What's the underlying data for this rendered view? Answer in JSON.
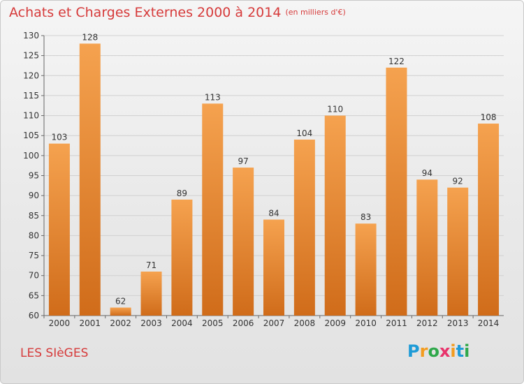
{
  "title": "Achats et Charges Externes 2000 à 2014",
  "unit_label": "(en milliers d'€)",
  "commune": "LES SIèGES",
  "logo": {
    "text": "Proxiti",
    "letters": [
      {
        "ch": "P",
        "color": "#1e9bd7"
      },
      {
        "ch": "r",
        "color": "#f39c1f"
      },
      {
        "ch": "o",
        "color": "#2ea84a"
      },
      {
        "ch": "x",
        "color": "#e8336b"
      },
      {
        "ch": "i",
        "color": "#f39c1f"
      },
      {
        "ch": "t",
        "color": "#1e9bd7"
      },
      {
        "ch": "i",
        "color": "#2ea84a"
      }
    ]
  },
  "colors": {
    "title": "#d63a3a",
    "bar_light": "#f5a24f",
    "bar_dark": "#d06c1a",
    "grid": "#d0d0d0",
    "axis_text": "#333333"
  },
  "chart_data": {
    "type": "bar",
    "title": "Achats et Charges Externes 2000 à 2014",
    "subtitle": "(en milliers d'€)",
    "xlabel": "",
    "ylabel": "",
    "categories": [
      "2000",
      "2001",
      "2002",
      "2003",
      "2004",
      "2005",
      "2006",
      "2007",
      "2008",
      "2009",
      "2010",
      "2011",
      "2012",
      "2013",
      "2014"
    ],
    "values": [
      103,
      128,
      62,
      71,
      89,
      113,
      97,
      84,
      104,
      110,
      83,
      122,
      94,
      92,
      108
    ],
    "ylim": [
      60,
      130
    ],
    "yticks": [
      60,
      65,
      70,
      75,
      80,
      85,
      90,
      95,
      100,
      105,
      110,
      115,
      120,
      125,
      130
    ],
    "grid": true,
    "data_labels": true
  }
}
